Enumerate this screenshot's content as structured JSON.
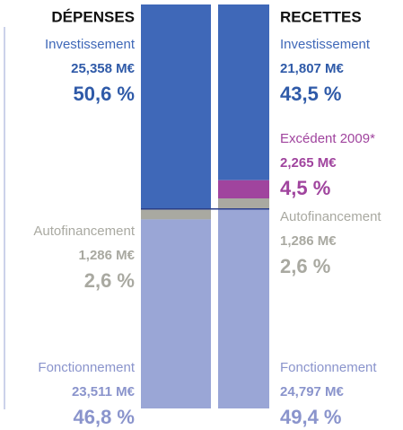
{
  "chart_data": {
    "type": "stacked-column",
    "columns": [
      {
        "label": "DÉPENSES",
        "segments": [
          {
            "name": "Investissement",
            "color": "#3f68b8",
            "value": 25.358,
            "value_label": "25,358 M€",
            "share": 50.6,
            "share_label": "50,6 %"
          },
          {
            "name": "Autofinancement",
            "color": "#a9a9a1",
            "value": 1.286,
            "value_label": "1,286 M€",
            "share": 2.6,
            "share_label": "2,6 %"
          },
          {
            "name": "Fonctionnement",
            "color": "#9aa6d6",
            "value": 23.511,
            "value_label": "23,511 M€",
            "share": 46.8,
            "share_label": "46,8 %"
          }
        ]
      },
      {
        "label": "RECETTES",
        "segments": [
          {
            "name": "Investissement",
            "color": "#3f68b8",
            "value": 21.807,
            "value_label": "21,807 M€",
            "share": 43.5,
            "share_label": "43,5 %"
          },
          {
            "name": "Excédent 2009*",
            "color": "#a0449e",
            "value": 2.265,
            "value_label": "2,265 M€",
            "share": 4.5,
            "share_label": "4,5 %"
          },
          {
            "name": "Autofinancement",
            "color": "#a9a9a1",
            "value": 1.286,
            "value_label": "1,286 M€",
            "share": 2.6,
            "share_label": "2,6 %"
          },
          {
            "name": "Fonctionnement",
            "color": "#9aa6d6",
            "value": 24.797,
            "value_label": "24,797 M€",
            "share": 49.4,
            "share_label": "49,4 %"
          }
        ]
      }
    ]
  }
}
